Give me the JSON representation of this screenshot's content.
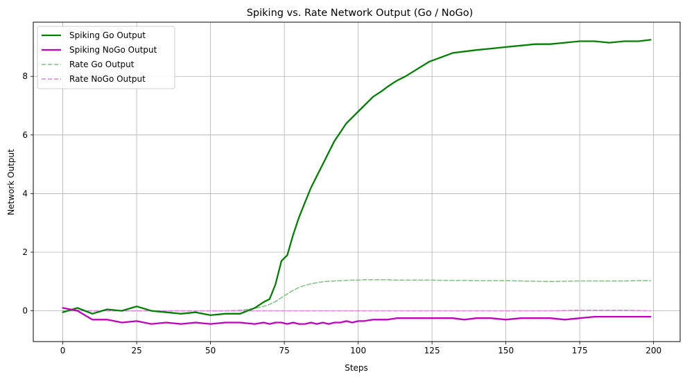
{
  "chart_data": {
    "type": "line",
    "title": "Spiking vs. Rate Network Output (Go / NoGo)",
    "xlabel": "Steps",
    "ylabel": "Network Output",
    "xlim": [
      -10,
      209
    ],
    "ylim": [
      -1.05,
      9.85
    ],
    "xticks": [
      0,
      25,
      50,
      75,
      100,
      125,
      150,
      175,
      200
    ],
    "yticks": [
      0,
      2,
      4,
      6,
      8
    ],
    "grid": true,
    "legend_position": "top-left",
    "x": [
      0,
      5,
      10,
      15,
      20,
      25,
      30,
      35,
      40,
      45,
      50,
      55,
      60,
      65,
      68,
      70,
      72,
      74,
      76,
      78,
      80,
      82,
      84,
      86,
      88,
      90,
      92,
      94,
      96,
      98,
      100,
      102,
      105,
      108,
      110,
      113,
      116,
      120,
      124,
      128,
      132,
      136,
      140,
      145,
      150,
      155,
      160,
      165,
      170,
      175,
      180,
      185,
      190,
      195,
      199
    ],
    "series": [
      {
        "name": "Spiking Go Output",
        "color": "#008000",
        "style": "solid",
        "values": [
          -0.05,
          0.1,
          -0.1,
          0.05,
          0.0,
          0.15,
          0.0,
          -0.05,
          -0.1,
          -0.05,
          -0.15,
          -0.1,
          -0.1,
          0.1,
          0.3,
          0.4,
          0.9,
          1.7,
          1.9,
          2.6,
          3.2,
          3.7,
          4.2,
          4.6,
          5.0,
          5.4,
          5.8,
          6.1,
          6.4,
          6.6,
          6.8,
          7.0,
          7.3,
          7.5,
          7.65,
          7.85,
          8.0,
          8.25,
          8.5,
          8.65,
          8.8,
          8.85,
          8.9,
          8.95,
          9.0,
          9.05,
          9.1,
          9.1,
          9.15,
          9.2,
          9.2,
          9.15,
          9.2,
          9.2,
          9.25
        ]
      },
      {
        "name": "Spiking NoGo Output",
        "color": "#bf00bf",
        "style": "solid",
        "values": [
          0.1,
          0.0,
          -0.3,
          -0.3,
          -0.4,
          -0.35,
          -0.45,
          -0.4,
          -0.45,
          -0.4,
          -0.45,
          -0.4,
          -0.4,
          -0.45,
          -0.4,
          -0.45,
          -0.4,
          -0.4,
          -0.45,
          -0.4,
          -0.45,
          -0.45,
          -0.4,
          -0.45,
          -0.4,
          -0.45,
          -0.4,
          -0.4,
          -0.35,
          -0.4,
          -0.35,
          -0.35,
          -0.3,
          -0.3,
          -0.3,
          -0.25,
          -0.25,
          -0.25,
          -0.25,
          -0.25,
          -0.25,
          -0.3,
          -0.25,
          -0.25,
          -0.3,
          -0.25,
          -0.25,
          -0.25,
          -0.3,
          -0.25,
          -0.2,
          -0.2,
          -0.2,
          -0.2,
          -0.2
        ]
      },
      {
        "name": "Rate Go Output",
        "color": "#7fbf7f",
        "style": "dashed",
        "values": [
          0.0,
          0.0,
          0.0,
          0.0,
          0.0,
          0.0,
          0.0,
          0.0,
          0.0,
          0.0,
          0.0,
          0.0,
          0.02,
          0.08,
          0.15,
          0.22,
          0.32,
          0.45,
          0.58,
          0.7,
          0.8,
          0.87,
          0.92,
          0.96,
          0.99,
          1.01,
          1.02,
          1.03,
          1.04,
          1.05,
          1.05,
          1.06,
          1.06,
          1.06,
          1.06,
          1.05,
          1.05,
          1.05,
          1.05,
          1.04,
          1.04,
          1.04,
          1.03,
          1.03,
          1.03,
          1.02,
          1.01,
          1.0,
          1.01,
          1.02,
          1.02,
          1.02,
          1.02,
          1.03,
          1.03
        ]
      },
      {
        "name": "Rate NoGo Output",
        "color": "#df7fdf",
        "style": "dashed",
        "values": [
          0.1,
          0.02,
          0.0,
          0.0,
          0.0,
          0.0,
          0.0,
          0.0,
          0.0,
          0.0,
          0.0,
          0.0,
          0.0,
          0.0,
          0.0,
          0.0,
          0.0,
          0.0,
          0.0,
          0.0,
          0.0,
          0.0,
          0.0,
          0.0,
          0.0,
          0.0,
          0.0,
          0.0,
          0.0,
          0.0,
          0.0,
          0.0,
          0.0,
          0.0,
          0.0,
          0.0,
          0.0,
          0.0,
          0.0,
          0.0,
          0.0,
          0.0,
          0.0,
          0.0,
          0.0,
          0.0,
          0.0,
          0.0,
          0.01,
          0.02,
          0.02,
          0.02,
          0.02,
          0.01,
          0.0
        ]
      }
    ]
  }
}
